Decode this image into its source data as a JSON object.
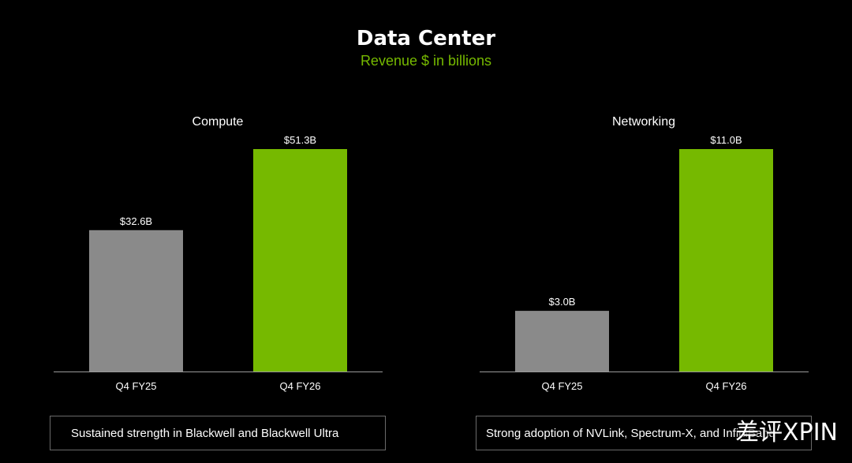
{
  "header": {
    "title": "Data Center",
    "subtitle": "Revenue $ in billions"
  },
  "colors": {
    "background": "#000000",
    "accent_green": "#76b900",
    "prior_gray": "#8a8a8a",
    "axis": "#9a9a9a"
  },
  "chart_data": [
    {
      "type": "bar",
      "title": "Compute",
      "categories": [
        "Q4 FY25",
        "Q4 FY26"
      ],
      "values": [
        32.6,
        51.3
      ],
      "labels": [
        "$32.6B",
        "$51.3B"
      ],
      "unit": "$ billions",
      "xlabel": "",
      "ylabel": "",
      "ylim": [
        0,
        51.3
      ],
      "grid": false,
      "callout": "Sustained strength in Blackwell and Blackwell Ultra"
    },
    {
      "type": "bar",
      "title": "Networking",
      "categories": [
        "Q4 FY25",
        "Q4 FY26"
      ],
      "values": [
        3.0,
        11.0
      ],
      "labels": [
        "$3.0B",
        "$11.0B"
      ],
      "unit": "$ billions",
      "xlabel": "",
      "ylabel": "",
      "ylim": [
        0,
        11.0
      ],
      "grid": false,
      "callout": "Strong adoption of NVLink, Spectrum-X, and InfiniBand"
    }
  ],
  "watermark": "差评XPIN"
}
